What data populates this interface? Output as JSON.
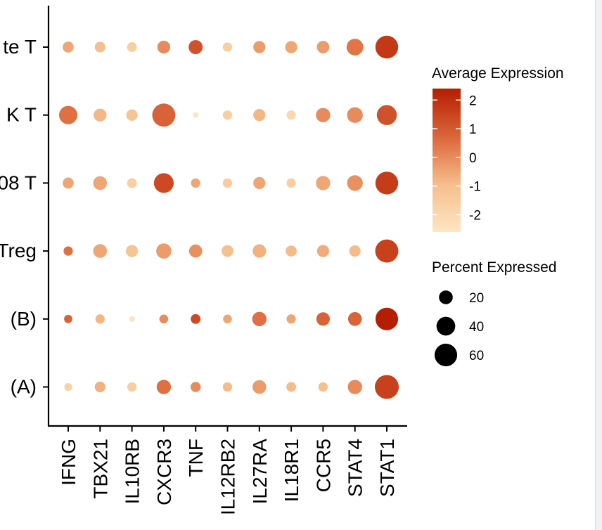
{
  "chart_data": {
    "type": "dotplot",
    "x_categories": [
      "IFNG",
      "TBX21",
      "IL10RB",
      "CXCR3",
      "TNF",
      "IL12RB2",
      "IL27RA",
      "IL18R1",
      "CCR5",
      "STAT4",
      "STAT1"
    ],
    "y_categories": [
      "te T",
      "K T",
      "08 T",
      "Treg",
      "(B)",
      "(A)"
    ],
    "series": [
      {
        "row": "te T",
        "avg_expression": [
          -0.5,
          -1.0,
          -1.6,
          0.0,
          1.2,
          -1.6,
          -0.3,
          -0.5,
          -0.3,
          0.4,
          1.8
        ],
        "pct_expressed": [
          12,
          11,
          9,
          17,
          21,
          8,
          15,
          15,
          16,
          31,
          61
        ]
      },
      {
        "row": "K T",
        "avg_expression": [
          0.5,
          -0.8,
          -1.2,
          0.8,
          -2.5,
          -1.6,
          -0.8,
          -2.0,
          0.0,
          0.0,
          1.2
        ],
        "pct_expressed": [
          38,
          17,
          13,
          63,
          2,
          8,
          15,
          8,
          22,
          27,
          46
        ]
      },
      {
        "row": "08 T",
        "avg_expression": [
          -0.5,
          -0.5,
          -1.6,
          1.4,
          -0.5,
          -1.5,
          -0.5,
          -1.6,
          -0.5,
          -0.1,
          1.7
        ],
        "pct_expressed": [
          12,
          20,
          9,
          45,
          8,
          8,
          15,
          8,
          22,
          27,
          61
        ]
      },
      {
        "row": "Treg",
        "avg_expression": [
          0.5,
          -0.5,
          -1.2,
          -0.3,
          -0.1,
          -1.0,
          -0.7,
          -0.9,
          -0.6,
          -0.9,
          1.6
        ],
        "pct_expressed": [
          8,
          20,
          15,
          25,
          18,
          14,
          19,
          12,
          15,
          13,
          63
        ]
      },
      {
        "row": "(B)",
        "avg_expression": [
          0.8,
          -0.8,
          -2.5,
          0.0,
          1.4,
          -0.5,
          0.5,
          -0.5,
          0.8,
          0.8,
          2.4
        ],
        "pct_expressed": [
          6,
          8,
          2,
          7,
          9,
          7,
          22,
          8,
          19,
          20,
          60
        ]
      },
      {
        "row": "(A)",
        "avg_expression": [
          -1.7,
          -0.7,
          -1.6,
          0.5,
          0.0,
          -0.9,
          -0.3,
          -0.9,
          -1.0,
          0.0,
          1.6
        ],
        "pct_expressed": [
          5,
          11,
          8,
          22,
          10,
          8,
          20,
          9,
          8,
          22,
          68
        ]
      }
    ],
    "color_legend": {
      "title": "Average Expression",
      "ticks": [
        2,
        1,
        0,
        -1,
        -2
      ],
      "range": [
        -2.6,
        2.4
      ],
      "low_color": "#FEE6C2",
      "high_color": "#B51E00"
    },
    "size_legend": {
      "title": "Percent Expressed",
      "ticks": [
        20,
        40,
        60
      ]
    },
    "grid": false,
    "legend_position": "right"
  }
}
